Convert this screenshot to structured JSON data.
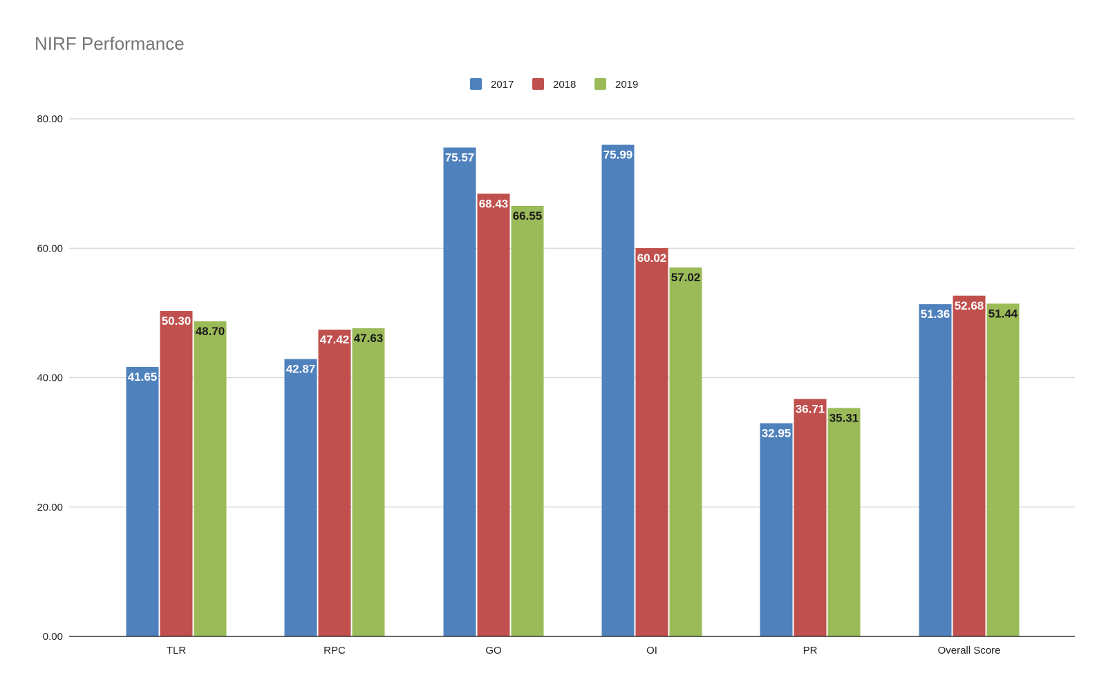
{
  "chart_data": {
    "type": "bar",
    "title": "NIRF Performance",
    "categories": [
      "TLR",
      "RPC",
      "GO",
      "OI",
      "PR",
      "Overall Score"
    ],
    "series": [
      {
        "name": "2017",
        "color": "#4f81bd",
        "label_color": "#ffffff",
        "values": [
          41.65,
          42.87,
          75.57,
          75.99,
          32.95,
          51.36
        ],
        "labels": [
          "41.65",
          "42.87",
          "75.57",
          "75.99",
          "32.95",
          "51.36"
        ]
      },
      {
        "name": "2018",
        "color": "#c0504d",
        "label_color": "#ffffff",
        "values": [
          50.3,
          47.42,
          68.43,
          60.02,
          36.71,
          52.68
        ],
        "labels": [
          "50.30",
          "47.42",
          "68.43",
          "60.02",
          "36.71",
          "52.68"
        ]
      },
      {
        "name": "2019",
        "color": "#9bbb59",
        "label_color": "#1a1a1a",
        "values": [
          48.7,
          47.63,
          66.55,
          57.02,
          35.31,
          51.44
        ],
        "labels": [
          "48.70",
          "47.63",
          "66.55",
          "57.02",
          "35.31",
          "51.44"
        ]
      }
    ],
    "yticks": [
      0,
      20,
      40,
      60,
      80
    ],
    "ytick_labels": [
      "0.00",
      "20.00",
      "40.00",
      "60.00",
      "80.00"
    ],
    "ylim": [
      0,
      80
    ],
    "xlabel": "",
    "ylabel": "",
    "grid": true,
    "legend_position": "top"
  }
}
